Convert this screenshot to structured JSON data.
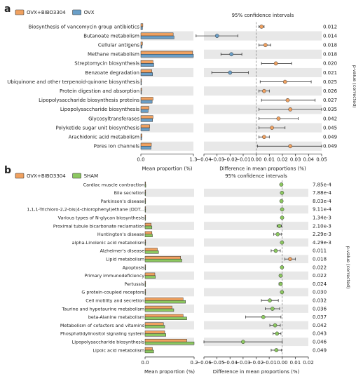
{
  "chart_data": [
    {
      "panel": "a",
      "type": "bar",
      "legend": [
        {
          "name": "OVX+BIBO3304",
          "color": "#f0a160"
        },
        {
          "name": "OVX",
          "color": "#6a9fc8"
        }
      ],
      "categories": [
        "Biosynthesis of vancomycin group antibiotics",
        "Butanoate metabolism",
        "Cellular antigens",
        "Methane metabolism",
        "Streptomycin biosynthesis",
        "Benzoate degradation",
        "Ubiquinone and other terpenoid-quinone biosynthesis",
        "Protein digestion and absorption",
        "Lipopolysaccharide biosynthesis proteins",
        "Lipopolysaccharide biosynthesis",
        "Glycosyltransferases",
        "Polyketide sugar unit biosynthesis",
        "Arachidonic acid metabolism",
        "Pores ion channels"
      ],
      "series": [
        {
          "name": "OVX+BIBO3304",
          "values": [
            0.05,
            0.8,
            0.04,
            1.28,
            0.3,
            0.27,
            0.015,
            0.02,
            0.3,
            0.2,
            0.3,
            0.22,
            0.03,
            0.26
          ]
        },
        {
          "name": "OVX",
          "values": [
            0.04,
            0.82,
            0.03,
            1.3,
            0.32,
            0.29,
            0.01,
            0.015,
            0.28,
            0.18,
            0.29,
            0.21,
            0.02,
            0.25
          ]
        }
      ],
      "diff_mean": [
        0.004,
        -0.03,
        0.007,
        -0.019,
        0.015,
        -0.02,
        0.022,
        0.006,
        0.024,
        0.026,
        0.017,
        0.012,
        0.006,
        0.026
      ],
      "ci_low": [
        0.002,
        -0.046,
        0.002,
        -0.027,
        0.004,
        -0.034,
        0.003,
        0.002,
        0.004,
        0.002,
        0.002,
        0.002,
        0.002,
        0.001
      ],
      "ci_high": [
        0.006,
        -0.014,
        0.011,
        -0.011,
        0.027,
        -0.006,
        0.042,
        0.01,
        0.045,
        0.05,
        0.032,
        0.022,
        0.01,
        0.05
      ],
      "p_values": [
        "0.012",
        "0.014",
        "0.018",
        "0.018",
        "0.020",
        "0.021",
        "0.025",
        "0.026",
        "0.027",
        "0.035",
        "0.042",
        "0.045",
        "0.049",
        "0.049"
      ],
      "bar_xlim": [
        0,
        1.3
      ],
      "bar_ticks": [
        "0.0",
        "1.3"
      ],
      "bar_xlabel": "Mean proportion (%)",
      "diff_xlim": [
        -0.04,
        0.05
      ],
      "diff_ticks": [
        "−0.04",
        "−0.03",
        "−0.02",
        "−0.01",
        "0.00",
        "0.01",
        "0.02",
        "0.03",
        "0.04",
        "0.05"
      ],
      "diff_xlabel": "Difference in mean proportions (%)",
      "ci_title": "95% confidence intervals",
      "pvalue_label": "p-value (corrected)"
    },
    {
      "panel": "b",
      "type": "bar",
      "legend": [
        {
          "name": "OVX+BIBO3304",
          "color": "#f0a160"
        },
        {
          "name": "SHAM",
          "color": "#8cc860"
        }
      ],
      "categories": [
        "Cardiac muscle contraction",
        "Bile secretion",
        "Parkinson's disease",
        "1,1,1-Trichloro-2,2-bis(4-chlorophenyl)ethane (DDT...",
        "Various types of N-glycan biosynthesis",
        "Proximal tubule bicarbonate reclamation",
        "Huntington's disease",
        "alpha-Linolenic acid metabolism",
        "Alzheimer's disease",
        "Lipid metabolism",
        "Apoptosis",
        "Primary immunodeficiency",
        "Pertussis",
        "G protein-coupled receptors",
        "Cell motility and secretion",
        "Taurine and hypotaurine metabolism",
        "beta-Alanine metabolism",
        "Metabolism of cofactors and vitamins",
        "Phosphatidylinositol signaling system",
        "Lipopolysaccharide biosynthesis",
        "Lipoic acid metabolism"
      ],
      "series": [
        {
          "name": "OVX+BIBO3304",
          "values": [
            0.002,
            0.001,
            0.002,
            0.001,
            0.001,
            0.025,
            0.028,
            0.001,
            0.05,
            0.145,
            0.001,
            0.04,
            0.001,
            0.0005,
            0.155,
            0.11,
            0.155,
            0.075,
            0.08,
            0.17,
            0.03
          ]
        },
        {
          "name": "SHAM",
          "values": [
            0.003,
            0.001,
            0.002,
            0.001,
            0.001,
            0.028,
            0.03,
            0.001,
            0.055,
            0.15,
            0.001,
            0.042,
            0.002,
            0.0008,
            0.165,
            0.117,
            0.17,
            0.08,
            0.085,
            0.2,
            0.035
          ]
        }
      ],
      "diff_mean": [
        -0.0007,
        -0.0002,
        -0.0006,
        -0.0001,
        -0.0001,
        -0.0022,
        -0.0035,
        -0.0002,
        -0.005,
        0.006,
        -0.0002,
        -0.0012,
        -0.0012,
        -0.0002,
        -0.0095,
        -0.0075,
        -0.0145,
        -0.0055,
        -0.004,
        -0.03,
        -0.0045
      ],
      "ci_low": [
        -0.0012,
        -0.0004,
        -0.0011,
        -0.0002,
        -0.0002,
        -0.004,
        -0.0065,
        -0.0003,
        -0.0085,
        0.002,
        -0.0003,
        -0.0022,
        -0.0025,
        -0.0003,
        -0.016,
        -0.013,
        -0.028,
        -0.0095,
        -0.007,
        -0.06,
        -0.0085
      ],
      "ci_high": [
        -0.0002,
        -0.0001,
        -0.0002,
        -0.0001,
        -0.0001,
        -0.0005,
        -0.0008,
        -0.0001,
        -0.0015,
        0.01,
        -0.0001,
        -0.0002,
        -0.0002,
        -0.0001,
        -0.003,
        -0.002,
        -0.001,
        -0.0015,
        -0.001,
        0.0,
        -0.0005
      ],
      "p_values": [
        "7.85e-4",
        "7.88e-4",
        "8.03e-4",
        "9.11e-4",
        "1.34e-3",
        "2.10e-3",
        "2.29e-3",
        "4.29e-3",
        "0.011",
        "0.018",
        "0.022",
        "0.022",
        "0.024",
        "0.030",
        "0.032",
        "0.036",
        "0.037",
        "0.042",
        "0.043",
        "0.046",
        "0.049"
      ],
      "bar_xlim": [
        0,
        0.2
      ],
      "bar_ticks": [
        "0.0",
        "0.2"
      ],
      "bar_xlabel": "Mean proportion (%)",
      "diff_xlim": [
        -0.06,
        0.02
      ],
      "diff_ticks": [
        "−0.06",
        "−0.05",
        "−0.04",
        "−0.03",
        "−0.02",
        "−0.01",
        "0.00",
        "0.01",
        "0.02"
      ],
      "diff_xlabel": "Difference in mean proportions (%)",
      "ci_title": "95% confidence intervals",
      "pvalue_label": "p-value (corrected)"
    }
  ]
}
